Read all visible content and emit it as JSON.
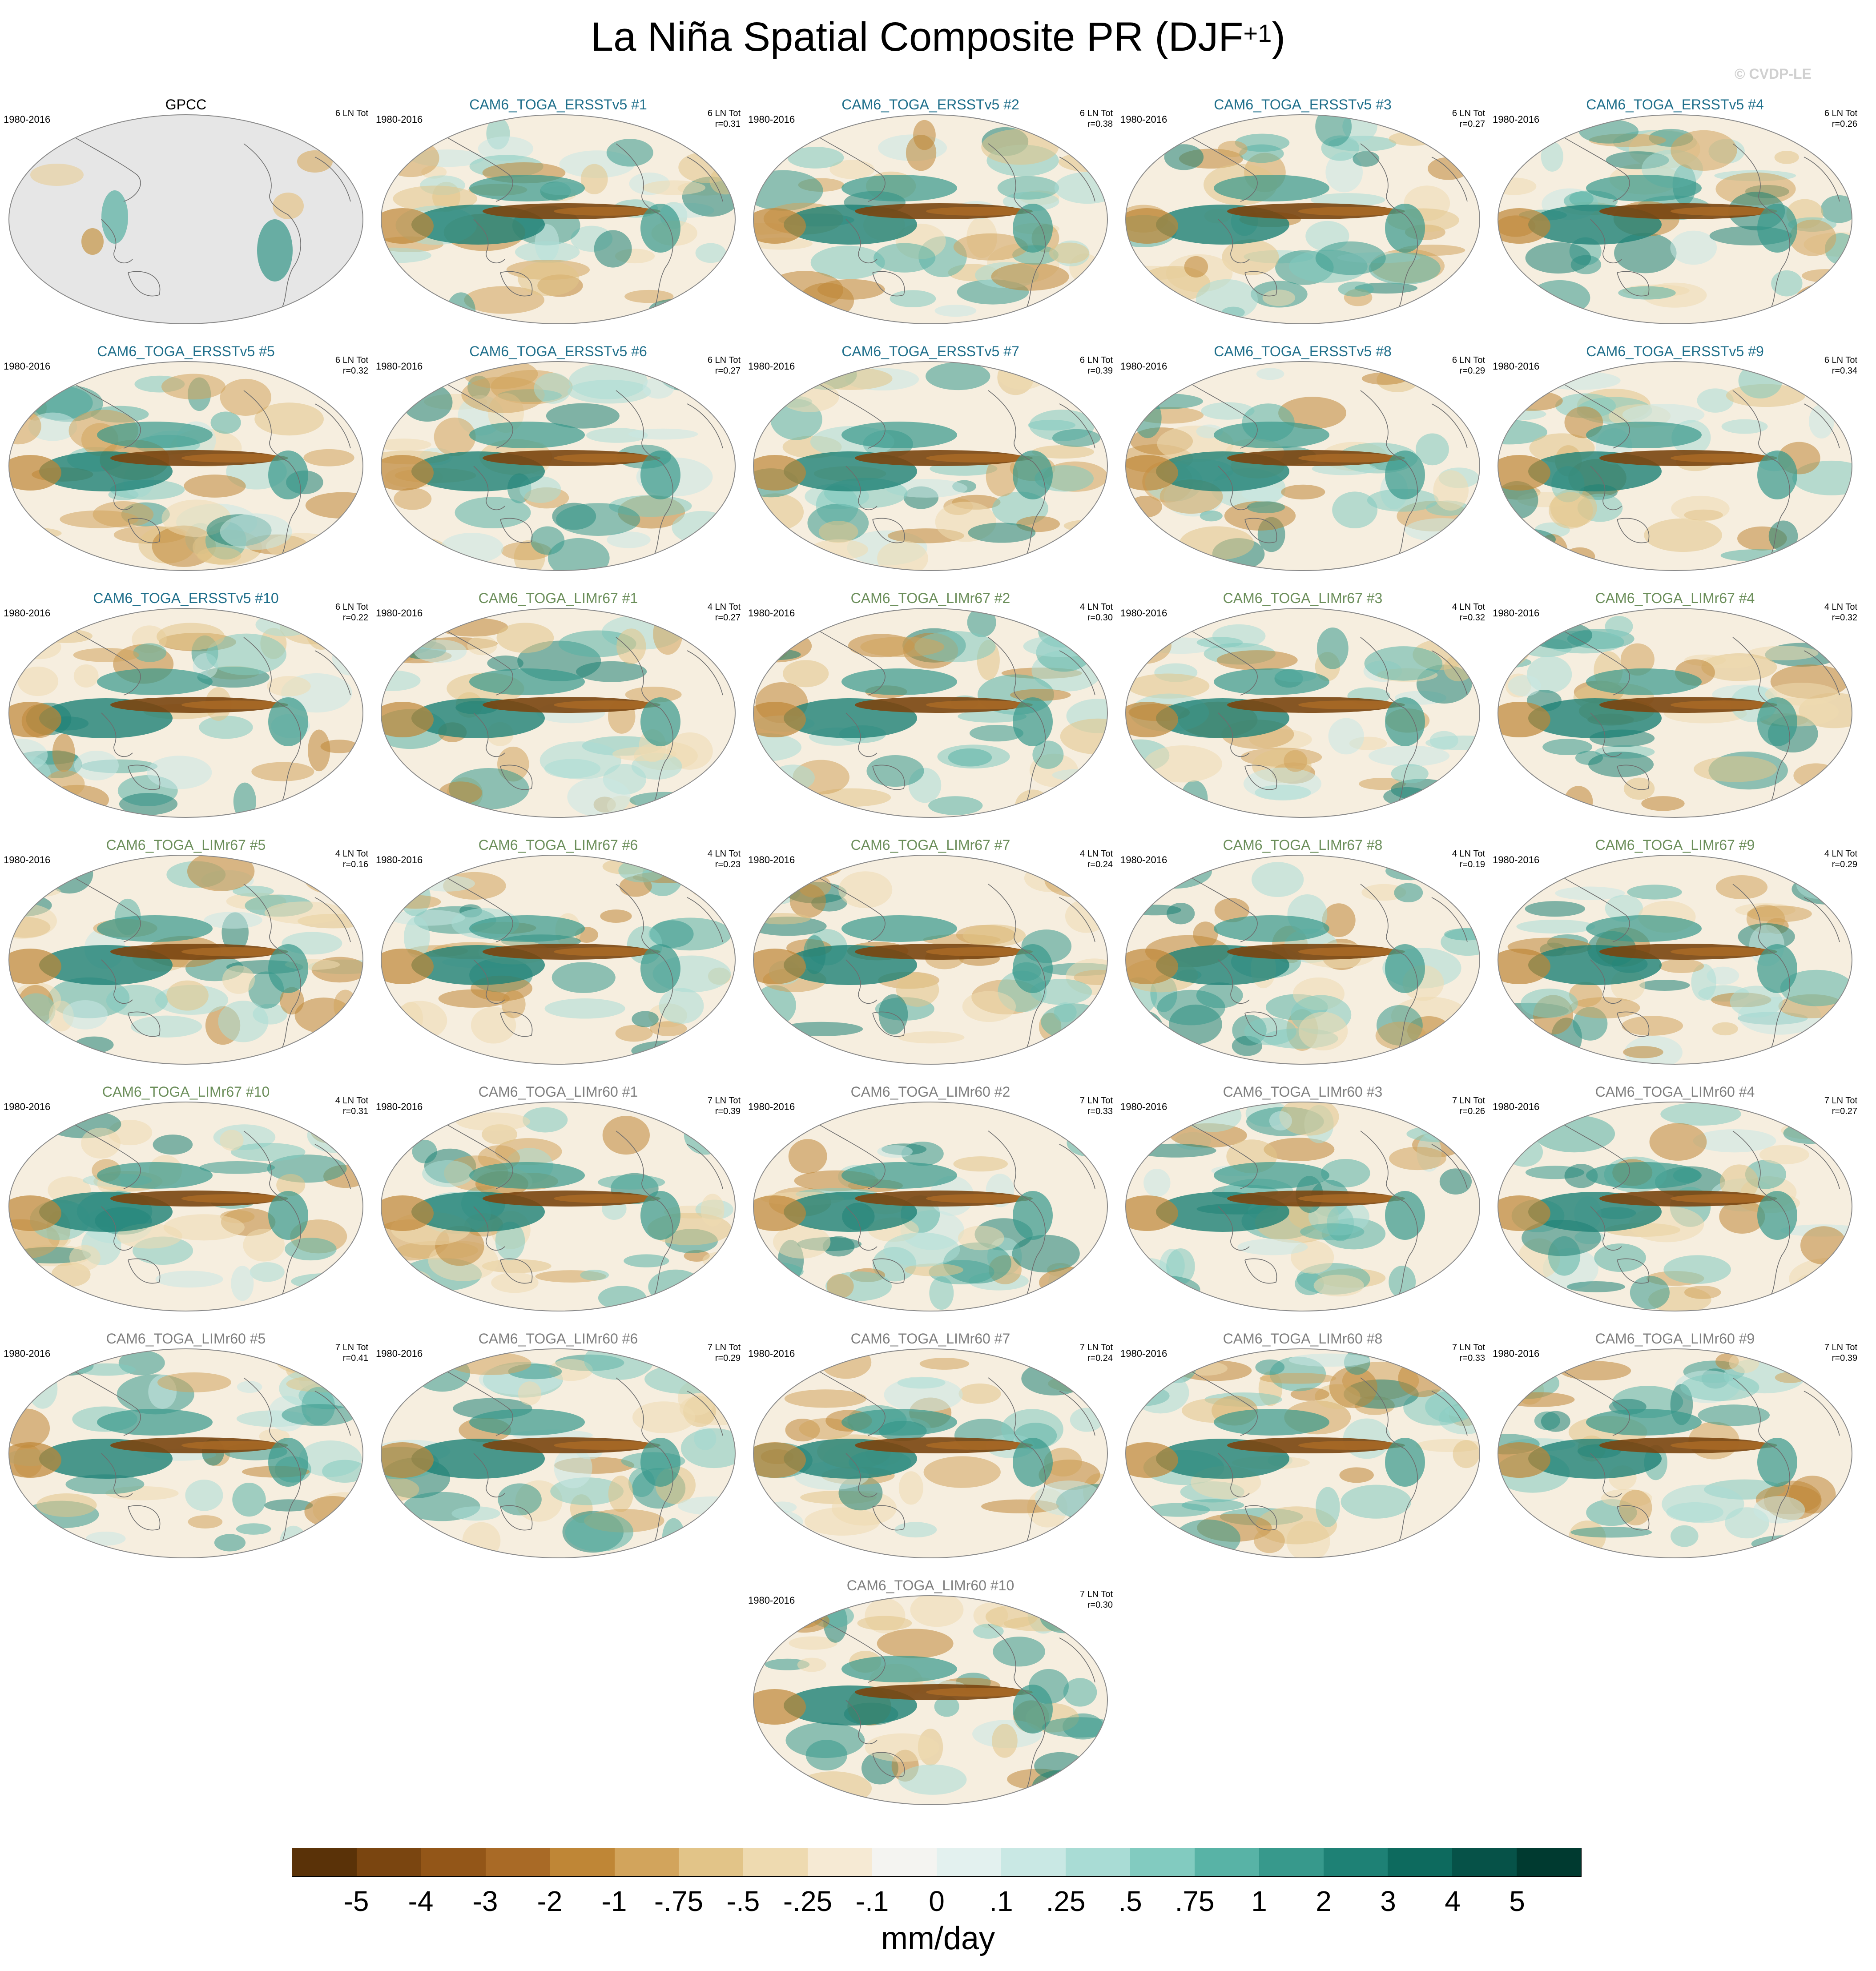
{
  "title": {
    "main": "La Niña Spatial Composite PR (DJF",
    "sup": "+1",
    "end": ")"
  },
  "watermark": "© CVDP-LE",
  "colors": {
    "obs_title": "#000000",
    "ersst_title": "#1f6f8b",
    "limr67_title": "#6b8e5a",
    "limr60_title": "#7f7f7f",
    "land_mask": "#e6e6e6",
    "wet": "#0d7a6c",
    "dry": "#9a5a18"
  },
  "chart_data": {
    "type": "heatmap",
    "projection": "global ellipse (Robinson-like), Pacific-centered",
    "variable": "PR",
    "season": "DJF+1",
    "units": "mm/day",
    "colorbar": {
      "labels": [
        "-5",
        "-4",
        "-3",
        "-2",
        "-1",
        "-.75",
        "-.5",
        "-.25",
        "-.1",
        "0",
        ".1",
        ".25",
        ".5",
        ".75",
        "1",
        "2",
        "3",
        "4",
        "5"
      ],
      "colors": [
        "#5a3208",
        "#7a4510",
        "#935618",
        "#a96a26",
        "#bf8636",
        "#d2a45c",
        "#e2c488",
        "#eedab0",
        "#f6ead4",
        "#f4f4f1",
        "#e3f1ef",
        "#c9e8e4",
        "#a9dcd5",
        "#82cbc0",
        "#58b3a6",
        "#37998c",
        "#1e8175",
        "#0d6a5e",
        "#065248",
        "#003a30"
      ]
    },
    "panels": [
      {
        "title": "GPCC",
        "period": "1980-2016",
        "count": "6 LN Tot",
        "r": "",
        "group": "obs"
      },
      {
        "title": "CAM6_TOGA_ERSSTv5 #1",
        "period": "1980-2016",
        "count": "6 LN Tot",
        "r": "r=0.31",
        "group": "ersst"
      },
      {
        "title": "CAM6_TOGA_ERSSTv5 #2",
        "period": "1980-2016",
        "count": "6 LN Tot",
        "r": "r=0.38",
        "group": "ersst"
      },
      {
        "title": "CAM6_TOGA_ERSSTv5 #3",
        "period": "1980-2016",
        "count": "6 LN Tot",
        "r": "r=0.27",
        "group": "ersst"
      },
      {
        "title": "CAM6_TOGA_ERSSTv5 #4",
        "period": "1980-2016",
        "count": "6 LN Tot",
        "r": "r=0.26",
        "group": "ersst"
      },
      {
        "title": "CAM6_TOGA_ERSSTv5 #5",
        "period": "1980-2016",
        "count": "6 LN Tot",
        "r": "r=0.32",
        "group": "ersst"
      },
      {
        "title": "CAM6_TOGA_ERSSTv5 #6",
        "period": "1980-2016",
        "count": "6 LN Tot",
        "r": "r=0.27",
        "group": "ersst"
      },
      {
        "title": "CAM6_TOGA_ERSSTv5 #7",
        "period": "1980-2016",
        "count": "6 LN Tot",
        "r": "r=0.39",
        "group": "ersst"
      },
      {
        "title": "CAM6_TOGA_ERSSTv5 #8",
        "period": "1980-2016",
        "count": "6 LN Tot",
        "r": "r=0.29",
        "group": "ersst"
      },
      {
        "title": "CAM6_TOGA_ERSSTv5 #9",
        "period": "1980-2016",
        "count": "6 LN Tot",
        "r": "r=0.34",
        "group": "ersst"
      },
      {
        "title": "CAM6_TOGA_ERSSTv5 #10",
        "period": "1980-2016",
        "count": "6 LN Tot",
        "r": "r=0.22",
        "group": "ersst"
      },
      {
        "title": "CAM6_TOGA_LIMr67 #1",
        "period": "1980-2016",
        "count": "4 LN Tot",
        "r": "r=0.27",
        "group": "limr67"
      },
      {
        "title": "CAM6_TOGA_LIMr67 #2",
        "period": "1980-2016",
        "count": "4 LN Tot",
        "r": "r=0.30",
        "group": "limr67"
      },
      {
        "title": "CAM6_TOGA_LIMr67 #3",
        "period": "1980-2016",
        "count": "4 LN Tot",
        "r": "r=0.32",
        "group": "limr67"
      },
      {
        "title": "CAM6_TOGA_LIMr67 #4",
        "period": "1980-2016",
        "count": "4 LN Tot",
        "r": "r=0.32",
        "group": "limr67"
      },
      {
        "title": "CAM6_TOGA_LIMr67 #5",
        "period": "1980-2016",
        "count": "4 LN Tot",
        "r": "r=0.16",
        "group": "limr67"
      },
      {
        "title": "CAM6_TOGA_LIMr67 #6",
        "period": "1980-2016",
        "count": "4 LN Tot",
        "r": "r=0.23",
        "group": "limr67"
      },
      {
        "title": "CAM6_TOGA_LIMr67 #7",
        "period": "1980-2016",
        "count": "4 LN Tot",
        "r": "r=0.24",
        "group": "limr67"
      },
      {
        "title": "CAM6_TOGA_LIMr67 #8",
        "period": "1980-2016",
        "count": "4 LN Tot",
        "r": "r=0.19",
        "group": "limr67"
      },
      {
        "title": "CAM6_TOGA_LIMr67 #9",
        "period": "1980-2016",
        "count": "4 LN Tot",
        "r": "r=0.29",
        "group": "limr67"
      },
      {
        "title": "CAM6_TOGA_LIMr67 #10",
        "period": "1980-2016",
        "count": "4 LN Tot",
        "r": "r=0.31",
        "group": "limr67"
      },
      {
        "title": "CAM6_TOGA_LIMr60 #1",
        "period": "1980-2016",
        "count": "7 LN Tot",
        "r": "r=0.39",
        "group": "limr60"
      },
      {
        "title": "CAM6_TOGA_LIMr60 #2",
        "period": "1980-2016",
        "count": "7 LN Tot",
        "r": "r=0.33",
        "group": "limr60"
      },
      {
        "title": "CAM6_TOGA_LIMr60 #3",
        "period": "1980-2016",
        "count": "7 LN Tot",
        "r": "r=0.26",
        "group": "limr60"
      },
      {
        "title": "CAM6_TOGA_LIMr60 #4",
        "period": "1980-2016",
        "count": "7 LN Tot",
        "r": "r=0.27",
        "group": "limr60"
      },
      {
        "title": "CAM6_TOGA_LIMr60 #5",
        "period": "1980-2016",
        "count": "7 LN Tot",
        "r": "r=0.41",
        "group": "limr60"
      },
      {
        "title": "CAM6_TOGA_LIMr60 #6",
        "period": "1980-2016",
        "count": "7 LN Tot",
        "r": "r=0.29",
        "group": "limr60"
      },
      {
        "title": "CAM6_TOGA_LIMr60 #7",
        "period": "1980-2016",
        "count": "7 LN Tot",
        "r": "r=0.24",
        "group": "limr60"
      },
      {
        "title": "CAM6_TOGA_LIMr60 #8",
        "period": "1980-2016",
        "count": "7 LN Tot",
        "r": "r=0.33",
        "group": "limr60"
      },
      {
        "title": "CAM6_TOGA_LIMr60 #9",
        "period": "1980-2016",
        "count": "7 LN Tot",
        "r": "r=0.39",
        "group": "limr60"
      },
      {
        "title": "CAM6_TOGA_LIMr60 #10",
        "period": "1980-2016",
        "count": "7 LN Tot",
        "r": "r=0.30",
        "group": "limr60"
      }
    ]
  }
}
